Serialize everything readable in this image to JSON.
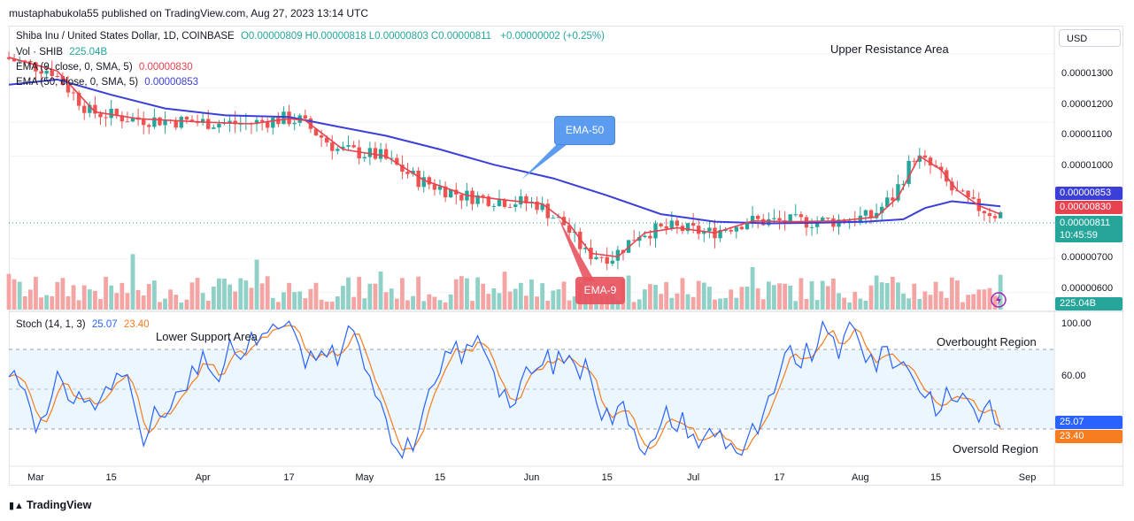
{
  "header": {
    "published": "mustaphabukola55 published on TradingView.com, Aug 27, 2023 13:14 UTC"
  },
  "legend": {
    "symbol": "Shiba Inu / United States Dollar, 1D, COINBASE",
    "ohlc": [
      {
        "k": "O",
        "v": "0.00000809"
      },
      {
        "k": "H",
        "v": "0.00000818"
      },
      {
        "k": "L",
        "v": "0.00000803"
      },
      {
        "k": "C",
        "v": "0.00000811"
      }
    ],
    "change": "+0.00000002 (+0.25%)",
    "vol_label": "Vol · SHIB",
    "vol_value": "225.04B",
    "ema9_label": "EMA (9, close, 0, SMA, 5)",
    "ema9_value": "0.00000830",
    "ema50_label": "EMA (50, close, 0, SMA, 5)",
    "ema50_value": "0.00000853",
    "stoch_label": "Stoch (14, 1, 3)",
    "stoch_k": "25.07",
    "stoch_d": "23.40"
  },
  "currency": "USD",
  "annotations": {
    "upper_resistance": "Upper Resistance Area",
    "lower_support": "Lower Support Area",
    "overbought": "Overbought Region",
    "oversold": "Oversold Region",
    "ema50_callout": "EMA-50",
    "ema9_callout": "EMA-9"
  },
  "price_axis": {
    "ticks": [
      "0.00001300",
      "0.00001200",
      "0.00001100",
      "0.00001000",
      "0.00000700",
      "0.00000600"
    ],
    "tags": {
      "ema50": "0.00000853",
      "ema9": "0.00000830",
      "last": "0.00000811",
      "countdown": "10:45:59",
      "volume": "225.04B"
    }
  },
  "stoch_axis": {
    "ticks": [
      "100.00",
      "60.00"
    ],
    "tags": {
      "k": "25.07",
      "d": "23.40"
    }
  },
  "time_axis": [
    "Mar",
    "15",
    "Apr",
    "17",
    "May",
    "15",
    "Jun",
    "15",
    "Jul",
    "17",
    "Aug",
    "15",
    "Sep"
  ],
  "colors": {
    "up": "#26a69a",
    "down": "#ef5350",
    "ema9": "#e8424f",
    "ema50": "#3b3fd8",
    "stoch_k": "#2962ff",
    "stoch_d": "#f57c1f",
    "stoch_band": "#e3f2fd",
    "callout_blue": "#5b9cf0",
    "callout_red": "#e8535f"
  },
  "chart_data": [
    {
      "type": "candlestick",
      "title": "Shiba Inu / United States Dollar, 1D, COINBASE",
      "x_range": [
        "2023-02-24",
        "2023-08-27"
      ],
      "ylim": [
        5.5e-06,
        1.37e-05
      ],
      "series": [
        {
          "name": "EMA (9, close, 0, SMA, 5)",
          "points": [
            [
              "2023-02-24",
              1.29e-05
            ],
            [
              "2023-03-05",
              1.25e-05
            ],
            [
              "2023-03-12",
              1.13e-05
            ],
            [
              "2023-03-20",
              1.11e-05
            ],
            [
              "2023-04-01",
              1.1e-05
            ],
            [
              "2023-04-10",
              1.095e-05
            ],
            [
              "2023-04-17",
              1.11e-05
            ],
            [
              "2023-04-20",
              1.105e-05
            ],
            [
              "2023-04-27",
              1.02e-05
            ],
            [
              "2023-05-05",
              1e-05
            ],
            [
              "2023-05-12",
              9.3e-06
            ],
            [
              "2023-05-20",
              8.85e-06
            ],
            [
              "2023-05-28",
              8.7e-06
            ],
            [
              "2023-06-03",
              8.6e-06
            ],
            [
              "2023-06-08",
              8e-06
            ],
            [
              "2023-06-12",
              7.15e-06
            ],
            [
              "2023-06-17",
              7.05e-06
            ],
            [
              "2023-06-22",
              7.75e-06
            ],
            [
              "2023-06-28",
              7.9e-06
            ],
            [
              "2023-07-05",
              7.75e-06
            ],
            [
              "2023-07-12",
              8.1e-06
            ],
            [
              "2023-07-20",
              8.08e-06
            ],
            [
              "2023-07-28",
              8.1e-06
            ],
            [
              "2023-08-04",
              8.22e-06
            ],
            [
              "2023-08-08",
              8.8e-06
            ],
            [
              "2023-08-12",
              1e-05
            ],
            [
              "2023-08-16",
              9.6e-06
            ],
            [
              "2023-08-19",
              9e-06
            ],
            [
              "2023-08-23",
              8.55e-06
            ],
            [
              "2023-08-27",
              8.3e-06
            ]
          ]
        },
        {
          "name": "EMA (50, close, 0, SMA, 5)",
          "points": [
            [
              "2023-02-24",
              1.21e-05
            ],
            [
              "2023-03-05",
              1.225e-05
            ],
            [
              "2023-03-15",
              1.18e-05
            ],
            [
              "2023-03-25",
              1.14e-05
            ],
            [
              "2023-04-05",
              1.12e-05
            ],
            [
              "2023-04-17",
              1.115e-05
            ],
            [
              "2023-04-25",
              1.09e-05
            ],
            [
              "2023-05-05",
              1.06e-05
            ],
            [
              "2023-05-15",
              1.02e-05
            ],
            [
              "2023-05-25",
              9.75e-06
            ],
            [
              "2023-06-05",
              9.35e-06
            ],
            [
              "2023-06-15",
              8.85e-06
            ],
            [
              "2023-06-25",
              8.3e-06
            ],
            [
              "2023-07-05",
              8.08e-06
            ],
            [
              "2023-07-15",
              8.03e-06
            ],
            [
              "2023-07-25",
              8.05e-06
            ],
            [
              "2023-08-02",
              8.08e-06
            ],
            [
              "2023-08-09",
              8.15e-06
            ],
            [
              "2023-08-13",
              8.48e-06
            ],
            [
              "2023-08-18",
              8.68e-06
            ],
            [
              "2023-08-27",
              8.53e-06
            ]
          ]
        }
      ],
      "last_values": {
        "ema50": 8.53e-06,
        "ema9": 8.3e-06,
        "close": 8.11e-06
      },
      "volume_last": "225.04B"
    },
    {
      "type": "line",
      "title": "Stoch (14, 1, 3)",
      "ylim": [
        0,
        100
      ],
      "bands": {
        "upper": 80,
        "middle": 50,
        "lower": 20
      },
      "series": [
        {
          "name": "%K",
          "last": 25.07
        },
        {
          "name": "%D",
          "last": 23.4
        }
      ]
    }
  ]
}
